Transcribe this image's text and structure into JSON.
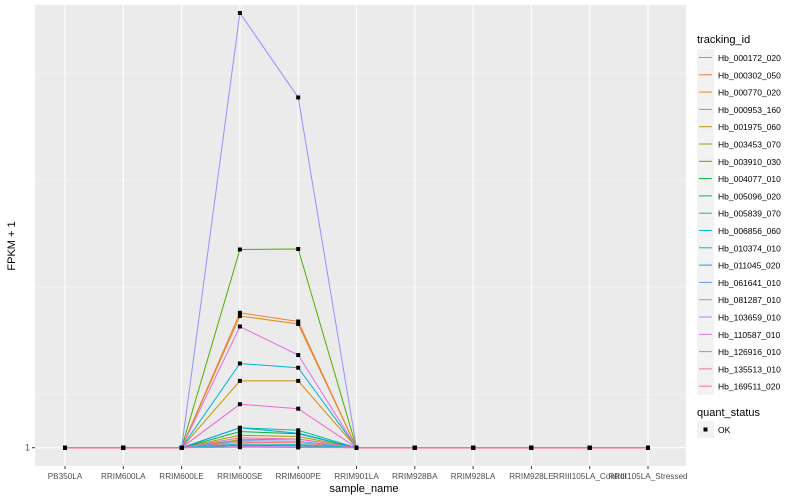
{
  "chart_data": {
    "type": "line",
    "title": "",
    "xlabel": "sample_name",
    "ylabel": "FPKM + 1",
    "y_tick_labels": [
      "1"
    ],
    "y_tick_values": [
      1
    ],
    "ylim": [
      0.92,
      11.4
    ],
    "grid": true,
    "legend_position": "right",
    "categories": [
      "PB350LA",
      "RRIM600LA",
      "RRIM600LE",
      "RRIM600SE",
      "RRIM600PE",
      "RRIM901LA",
      "RRIM928BA",
      "RRIM928LA",
      "RRIM928LE",
      "RRIII105LA_Control",
      "RRIII105LA_Stressed"
    ],
    "legend_title": "tracking_id",
    "series": [
      {
        "name": "Hb_000172_020",
        "color": "#F8766D",
        "values": [
          1,
          1,
          1,
          1.22,
          1.2,
          1,
          1,
          1,
          1,
          1,
          1
        ]
      },
      {
        "name": "Hb_000302_050",
        "color": "#EE7F3A",
        "values": [
          1,
          1,
          1,
          6.43,
          6.08,
          1,
          1,
          1,
          1,
          1,
          1
        ]
      },
      {
        "name": "Hb_000770_020",
        "color": "#E1881A",
        "values": [
          1,
          1,
          1,
          6.3,
          5.98,
          1,
          1,
          1,
          1,
          1,
          1
        ]
      },
      {
        "name": "Hb_000953_160",
        "color": "#D09100",
        "values": [
          1,
          1,
          1,
          3.69,
          3.69,
          1,
          1,
          1,
          1,
          1,
          1
        ]
      },
      {
        "name": "Hb_001975_060",
        "color": "#B49A00",
        "values": [
          1,
          1,
          1,
          1.32,
          1.35,
          1,
          1,
          1,
          1,
          1,
          1
        ]
      },
      {
        "name": "Hb_003453_070",
        "color": "#94A600",
        "values": [
          1,
          1,
          1,
          1.5,
          1.45,
          1,
          1,
          1,
          1,
          1,
          1
        ]
      },
      {
        "name": "Hb_003910_030",
        "color": "#4DB000",
        "values": [
          1,
          1,
          1,
          8.98,
          9.0,
          1,
          1,
          1,
          1,
          1,
          1
        ]
      },
      {
        "name": "Hb_004077_010",
        "color": "#00B53A",
        "values": [
          1,
          1,
          1,
          1.65,
          1.56,
          1,
          1,
          1,
          1,
          1,
          1
        ]
      },
      {
        "name": "Hb_005096_020",
        "color": "#00BB76",
        "values": [
          1,
          1,
          1,
          1.1,
          1.08,
          1,
          1,
          1,
          1,
          1,
          1
        ]
      },
      {
        "name": "Hb_005839_070",
        "color": "#00BEA0",
        "values": [
          1,
          1,
          1,
          1.8,
          1.7,
          1,
          1,
          1,
          1,
          1,
          1
        ]
      },
      {
        "name": "Hb_006856_060",
        "color": "#00C0C0",
        "values": [
          1,
          1,
          1,
          1.15,
          1.13,
          1,
          1,
          1,
          1,
          1,
          1
        ]
      },
      {
        "name": "Hb_010374_010",
        "color": "#00B4D8",
        "values": [
          1,
          1,
          1,
          4.39,
          4.22,
          1,
          1,
          1,
          1,
          1,
          1
        ]
      },
      {
        "name": "Hb_011045_020",
        "color": "#00A8E7",
        "values": [
          1,
          1,
          1,
          1.8,
          1.58,
          1,
          1,
          1,
          1,
          1,
          1
        ]
      },
      {
        "name": "Hb_061641_010",
        "color": "#619CFF",
        "values": [
          1,
          1,
          1,
          1.28,
          1.26,
          1,
          1,
          1,
          1,
          1,
          1
        ]
      },
      {
        "name": "Hb_081287_010",
        "color": "#9590FF",
        "values": [
          1,
          1,
          1,
          18.5,
          15.1,
          1,
          1,
          1,
          1,
          1,
          1
        ]
      },
      {
        "name": "Hb_103659_010",
        "color": "#C77CFF",
        "values": [
          1,
          1,
          1,
          1.05,
          1.04,
          1,
          1,
          1,
          1,
          1,
          1
        ]
      },
      {
        "name": "Hb_110587_010",
        "color": "#E06EE6",
        "values": [
          1,
          1,
          1,
          5.88,
          4.73,
          1,
          1,
          1,
          1,
          1,
          1
        ]
      },
      {
        "name": "Hb_126916_010",
        "color": "#F066CD",
        "values": [
          1,
          1,
          1,
          2.75,
          2.57,
          1,
          1,
          1,
          1,
          1,
          1
        ]
      },
      {
        "name": "Hb_135513_010",
        "color": "#FA67AF",
        "values": [
          1,
          1,
          1,
          1.4,
          1.35,
          1,
          1,
          1,
          1,
          1,
          1
        ]
      },
      {
        "name": "Hb_169511_020",
        "color": "#FF6C91",
        "values": [
          1,
          1,
          1,
          1.02,
          1.01,
          1,
          1,
          1,
          1,
          1,
          1
        ]
      }
    ],
    "shape_legend": {
      "title": "quant_status",
      "entries": [
        "OK"
      ]
    }
  }
}
